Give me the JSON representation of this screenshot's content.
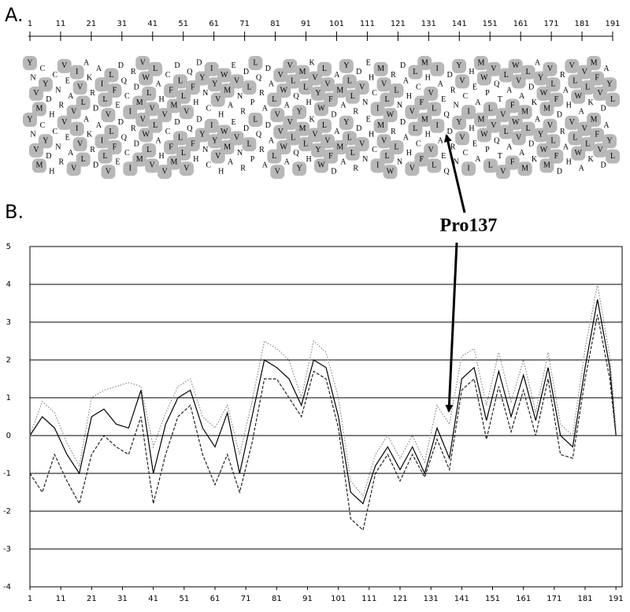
{
  "panel_a": {
    "label": "A.",
    "ticks": [
      1,
      11,
      21,
      31,
      41,
      51,
      61,
      71,
      81,
      91,
      101,
      111,
      121,
      131,
      141,
      151,
      161,
      171,
      181,
      191
    ],
    "sequence": "YNVMCYDHCNRVEAVIVLAKRDAILVLFEDQCIRDMVWLVLAHVCFMDLLVQFHDYNCIYVHWMAEVNRDLPLQRADALVVWAVLQYMLHKVYWLVFDAMAYLLRDVNEHCIMVLWRLNDAHVLCFMHVLIAEQDRNYVCIHEAMWPLVQTVLAFWVAMLDKAYWMVLFDRAHVLWAVLKMFVDAYL"
  },
  "panel_b": {
    "label": "B.",
    "annotation": "Pro137"
  },
  "chart_data": {
    "type": "line",
    "x": [
      1,
      5,
      9,
      13,
      17,
      21,
      25,
      29,
      33,
      37,
      41,
      45,
      49,
      53,
      57,
      61,
      65,
      69,
      73,
      77,
      81,
      85,
      89,
      93,
      97,
      101,
      105,
      109,
      113,
      117,
      121,
      125,
      129,
      133,
      137,
      141,
      145,
      149,
      153,
      157,
      161,
      165,
      169,
      173,
      177,
      181,
      185,
      189,
      191
    ],
    "xlim": [
      1,
      193
    ],
    "xticks": [
      1,
      11,
      21,
      31,
      41,
      51,
      61,
      71,
      81,
      91,
      101,
      111,
      121,
      131,
      141,
      151,
      161,
      171,
      181,
      191
    ],
    "ylim": [
      -4,
      5
    ],
    "yticks": [
      -4,
      -3,
      -2,
      -1,
      0,
      1,
      2,
      3,
      4,
      5
    ],
    "grid": true,
    "series": [
      {
        "color": "#000000",
        "dash": "solid",
        "values": [
          0,
          0.5,
          0.2,
          -0.5,
          -1.0,
          0.5,
          0.7,
          0.3,
          0.2,
          1.2,
          -1.0,
          0.3,
          1.0,
          1.2,
          0.2,
          -0.3,
          0.6,
          -1.0,
          0.5,
          2.0,
          1.8,
          1.5,
          0.8,
          2.0,
          1.8,
          0.5,
          -1.5,
          -1.8,
          -0.8,
          -0.3,
          -0.9,
          -0.3,
          -1.0,
          0.2,
          -0.6,
          1.5,
          1.8,
          0.4,
          1.7,
          0.5,
          1.6,
          0.4,
          1.8,
          0.0,
          -0.3,
          1.8,
          3.6,
          1.8,
          0
        ]
      },
      {
        "color": "#888888",
        "dash": "dotted",
        "values": [
          0,
          0.9,
          0.6,
          -0.2,
          -0.8,
          1.0,
          1.2,
          1.3,
          1.4,
          1.3,
          -0.3,
          0.6,
          1.3,
          1.5,
          0.5,
          0.2,
          0.8,
          -0.5,
          0.9,
          2.5,
          2.3,
          2.0,
          1.0,
          2.5,
          2.2,
          1.0,
          -1.2,
          -1.6,
          -0.5,
          0.0,
          -0.6,
          0.0,
          -0.7,
          0.8,
          0.3,
          2.1,
          2.3,
          0.8,
          2.2,
          0.9,
          2.0,
          0.6,
          2.2,
          0.3,
          0.0,
          2.3,
          4.0,
          2.1,
          0.2
        ]
      },
      {
        "color": "#222222",
        "dash": "dashed",
        "values": [
          -1.0,
          -1.5,
          -0.5,
          -1.2,
          -1.8,
          -0.5,
          0.0,
          -0.3,
          -0.5,
          0.5,
          -1.8,
          -0.5,
          0.5,
          0.8,
          -0.5,
          -1.3,
          -0.5,
          -1.5,
          -0.2,
          1.5,
          1.5,
          1.0,
          0.5,
          1.7,
          1.5,
          0.2,
          -2.2,
          -2.5,
          -1.0,
          -0.5,
          -1.2,
          -0.5,
          -1.1,
          -0.1,
          -0.9,
          1.2,
          1.5,
          -0.1,
          1.3,
          0.1,
          1.2,
          0.0,
          1.5,
          -0.5,
          -0.6,
          1.5,
          3.2,
          1.5,
          0
        ]
      }
    ]
  }
}
